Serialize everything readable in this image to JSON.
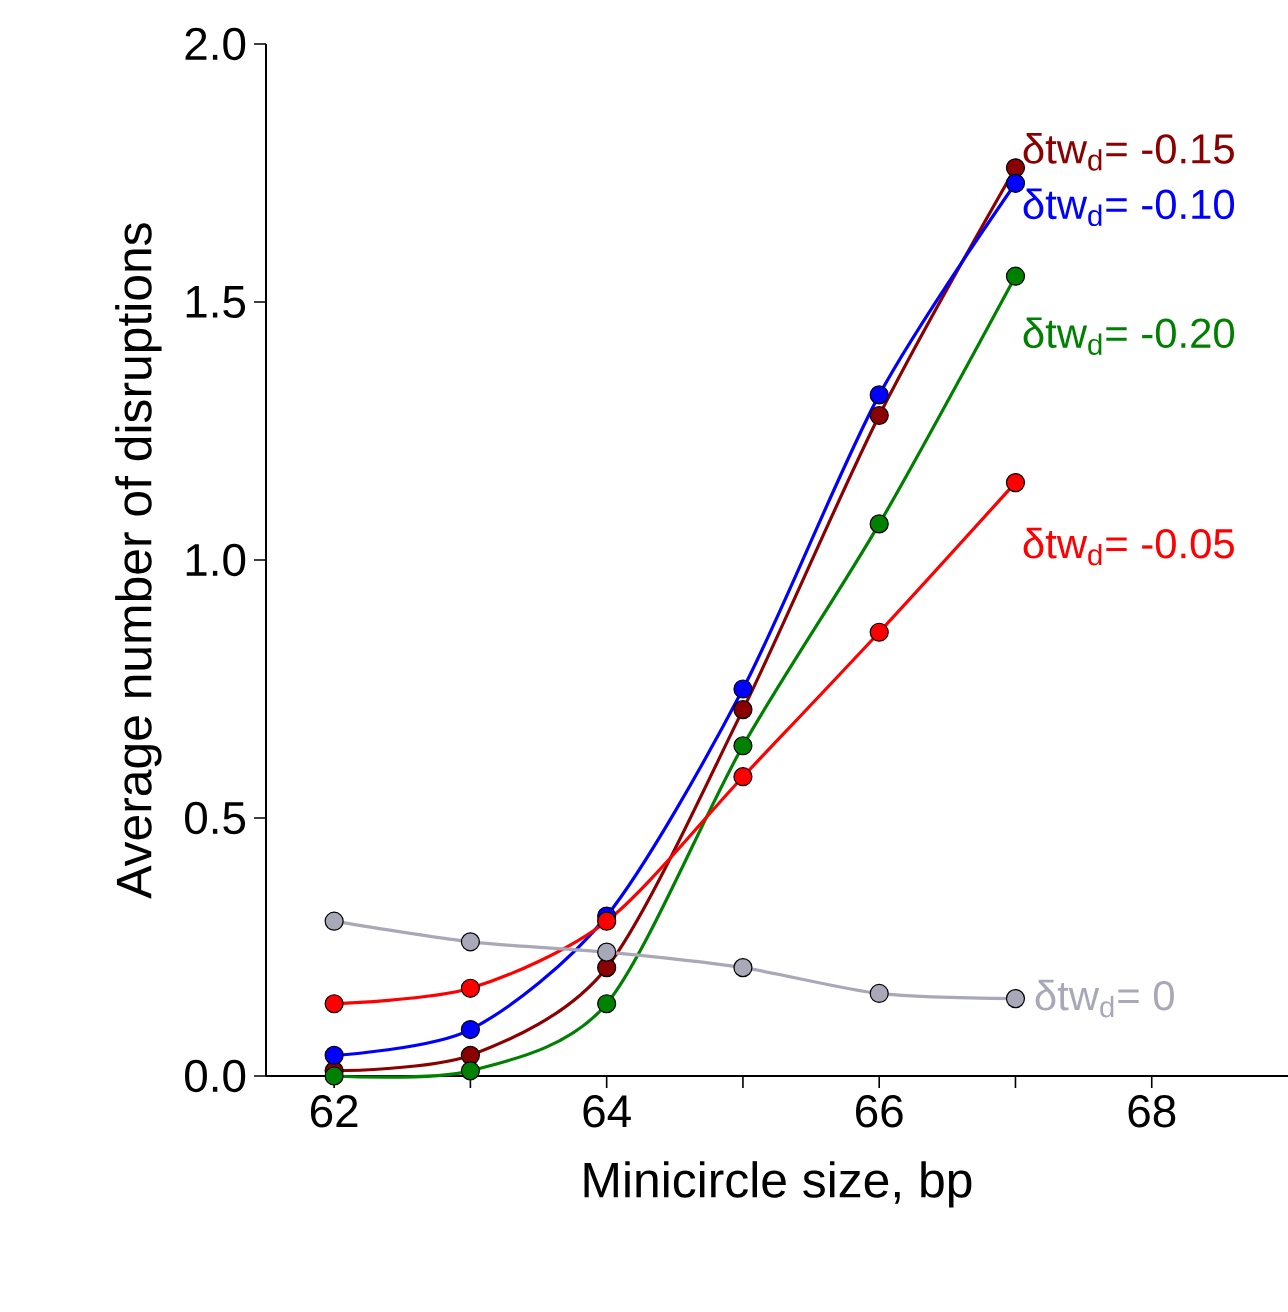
{
  "chart_data": {
    "type": "line",
    "xlabel": "Minicircle size, bp",
    "ylabel": "Average number of disruptions",
    "x": [
      62,
      63,
      64,
      65,
      66,
      67
    ],
    "series": [
      {
        "name": "δtw$_{d}$= -0.15",
        "color": "#8b0000",
        "values": [
          0.01,
          0.04,
          0.21,
          0.71,
          1.28,
          1.76
        ]
      },
      {
        "name": "δtw$_{d}$= -0.10",
        "color": "#0000ff",
        "values": [
          0.04,
          0.09,
          0.31,
          0.75,
          1.32,
          1.73
        ]
      },
      {
        "name": "δtw$_{d}$= -0.20",
        "color": "#008000",
        "values": [
          0.0,
          0.01,
          0.14,
          0.64,
          1.07,
          1.55
        ]
      },
      {
        "name": "δtw$_{d}$= -0.05",
        "color": "#ff0000",
        "values": [
          0.14,
          0.17,
          0.3,
          0.58,
          0.86,
          1.15
        ]
      },
      {
        "name": "δtw$_{d}$= 0",
        "color": "#a8a8b8",
        "values": [
          0.3,
          0.26,
          0.24,
          0.21,
          0.16,
          0.15
        ]
      }
    ],
    "xlim": [
      61.5,
      69
    ],
    "ylim": [
      0,
      2
    ],
    "xticks": [
      62,
      {
        "value": 63,
        "label": null
      },
      64,
      {
        "value": 65,
        "label": null
      },
      66,
      {
        "value": 67,
        "label": null
      },
      68
    ],
    "yticks": [
      {
        "value": 0,
        "label": "0.0"
      },
      {
        "value": 0.5,
        "label": "0.5"
      },
      {
        "value": 1,
        "label": "1.0"
      },
      {
        "value": 1.5,
        "label": "1.5"
      },
      {
        "value": 2,
        "label": "2.0"
      }
    ],
    "marker": "circle",
    "line_style": "solid",
    "legend": false,
    "grid": false
  }
}
